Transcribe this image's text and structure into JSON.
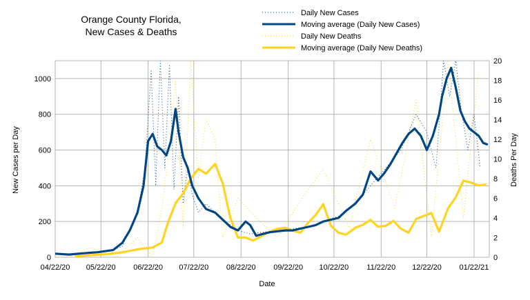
{
  "chart_data": {
    "type": "line",
    "title": "Orange County Florida,\nNew Cases & Deaths",
    "title_lines": [
      "Orange County Florida,",
      "New Cases & Deaths"
    ],
    "xlabel": "Date",
    "ylabel": "New Cases per Day",
    "y2label": "Deaths Per Day",
    "x_ticks": [
      "04/22/20",
      "05/22/20",
      "06/22/20",
      "07/22/20",
      "08/22/20",
      "09/22/20",
      "10/22/20",
      "11/22/20",
      "12/22/20",
      "01/22/21"
    ],
    "y_ticks": [
      0,
      200,
      400,
      600,
      800,
      1000
    ],
    "y2_ticks": [
      0,
      2,
      4,
      6,
      8,
      10,
      12,
      14,
      16,
      18,
      20
    ],
    "ylim": [
      0,
      1100
    ],
    "y2lim": [
      0,
      20
    ],
    "xlim": [
      "04/22/20",
      "02/01/21"
    ],
    "grid": true,
    "legend_position": "top-right",
    "colors": {
      "cases": "#004586",
      "deaths": "#ffd320"
    },
    "series": [
      {
        "name": "Daily New Cases",
        "axis": "left",
        "style": "dotted",
        "color": "#004586",
        "x": [
          "04/25/20",
          "05/05/20",
          "05/15/20",
          "05/25/20",
          "06/05/20",
          "06/15/20",
          "06/20/20",
          "06/24/20",
          "06/27/20",
          "06/30/20",
          "07/03/20",
          "07/06/20",
          "07/09/20",
          "07/12/20",
          "07/15/20",
          "07/18/20",
          "07/21/20",
          "07/25/20",
          "07/30/20",
          "08/05/20",
          "08/12/20",
          "08/20/20",
          "08/28/20",
          "09/05/20",
          "09/15/20",
          "09/25/20",
          "10/05/20",
          "10/15/20",
          "10/25/20",
          "11/05/20",
          "11/15/20",
          "11/25/20",
          "12/05/20",
          "12/15/20",
          "12/22/20",
          "12/28/20",
          "01/02/21",
          "01/06/21",
          "01/10/21",
          "01/14/21",
          "01/18/21",
          "01/22/21",
          "01/26/21"
        ],
        "values": [
          20,
          15,
          25,
          30,
          60,
          250,
          500,
          1050,
          400,
          1100,
          500,
          1080,
          380,
          900,
          300,
          500,
          350,
          250,
          300,
          250,
          200,
          150,
          130,
          140,
          150,
          160,
          170,
          200,
          230,
          300,
          400,
          500,
          600,
          800,
          700,
          500,
          1100,
          900,
          1100,
          800,
          600,
          800,
          500
        ]
      },
      {
        "name": "Moving average (Daily New Cases)",
        "axis": "left",
        "style": "solid",
        "color": "#004586",
        "x": [
          "04/22/20",
          "05/01/20",
          "05/10/20",
          "05/20/20",
          "05/30/20",
          "06/05/20",
          "06/10/20",
          "06/15/20",
          "06/19/20",
          "06/22/20",
          "06/25/20",
          "06/28/20",
          "07/01/20",
          "07/04/20",
          "07/07/20",
          "07/10/20",
          "07/12/20",
          "07/15/20",
          "07/18/20",
          "07/21/20",
          "07/25/20",
          "07/30/20",
          "08/05/20",
          "08/10/20",
          "08/15/20",
          "08/20/20",
          "08/25/20",
          "08/28/20",
          "09/01/20",
          "09/05/20",
          "09/10/20",
          "09/15/20",
          "09/20/20",
          "09/25/20",
          "09/30/20",
          "10/05/20",
          "10/10/20",
          "10/15/20",
          "10/20/20",
          "10/25/20",
          "10/30/20",
          "11/05/20",
          "11/10/20",
          "11/15/20",
          "11/20/20",
          "11/24/20",
          "11/28/20",
          "12/02/20",
          "12/06/20",
          "12/10/20",
          "12/14/20",
          "12/18/20",
          "12/22/20",
          "12/26/20",
          "12/30/20",
          "01/01/21",
          "01/04/21",
          "01/07/21",
          "01/10/21",
          "01/13/21",
          "01/16/21",
          "01/19/21",
          "01/22/21",
          "01/25/21",
          "01/28/21",
          "01/31/21"
        ],
        "values": [
          20,
          15,
          22,
          28,
          40,
          80,
          150,
          250,
          400,
          650,
          690,
          620,
          600,
          570,
          650,
          830,
          700,
          560,
          500,
          400,
          330,
          270,
          250,
          210,
          170,
          150,
          200,
          180,
          120,
          130,
          140,
          145,
          150,
          150,
          160,
          170,
          180,
          200,
          210,
          220,
          260,
          300,
          350,
          480,
          430,
          470,
          520,
          580,
          640,
          690,
          720,
          680,
          600,
          680,
          800,
          900,
          1000,
          1060,
          950,
          820,
          760,
          720,
          700,
          680,
          640,
          630
        ]
      },
      {
        "name": "Daily New Deaths",
        "axis": "right",
        "style": "dotted",
        "color": "#ffd320",
        "x": [
          "05/01/20",
          "05/15/20",
          "06/01/20",
          "06/15/20",
          "06/25/20",
          "07/01/20",
          "07/05/20",
          "07/10/20",
          "07/15/20",
          "07/20/20",
          "07/25/20",
          "07/30/20",
          "08/05/20",
          "08/10/20",
          "08/20/20",
          "09/01/20",
          "09/15/20",
          "10/01/20",
          "10/15/20",
          "11/01/20",
          "11/15/20",
          "12/01/20",
          "12/15/20",
          "12/25/20",
          "01/05/21",
          "01/15/21",
          "01/25/21"
        ],
        "values": [
          0,
          1,
          0,
          2,
          0,
          5,
          10,
          18,
          3,
          20,
          8,
          14,
          12,
          2,
          6,
          4,
          2,
          6,
          9,
          3,
          12,
          5,
          16,
          2,
          20,
          4,
          19
        ]
      },
      {
        "name": "Moving average (Daily New Deaths)",
        "axis": "right",
        "style": "solid",
        "color": "#ffd320",
        "x": [
          "05/05/20",
          "05/15/20",
          "05/25/20",
          "06/05/20",
          "06/15/20",
          "06/25/20",
          "07/01/20",
          "07/05/20",
          "07/10/20",
          "07/15/20",
          "07/20/20",
          "07/25/20",
          "07/30/20",
          "08/05/20",
          "08/10/20",
          "08/15/20",
          "08/20/20",
          "08/25/20",
          "08/30/20",
          "09/05/20",
          "09/10/20",
          "09/15/20",
          "09/20/20",
          "09/25/20",
          "09/30/20",
          "10/05/20",
          "10/10/20",
          "10/15/20",
          "10/20/20",
          "10/25/20",
          "10/30/20",
          "11/05/20",
          "11/10/20",
          "11/15/20",
          "11/20/20",
          "11/25/20",
          "11/30/20",
          "12/05/20",
          "12/10/20",
          "12/15/20",
          "12/20/20",
          "12/25/20",
          "12/30/20",
          "01/05/21",
          "01/10/21",
          "01/15/21",
          "01/20/21",
          "01/25/21",
          "01/30/21"
        ],
        "values": [
          0.1,
          0.2,
          0.3,
          0.5,
          0.8,
          1.0,
          1.5,
          3.5,
          5.5,
          6.5,
          8.0,
          9.0,
          8.5,
          9.5,
          7.5,
          4.0,
          2.0,
          2.0,
          1.7,
          2.2,
          2.6,
          2.9,
          3.0,
          2.7,
          2.5,
          3.5,
          4.3,
          5.4,
          3.2,
          2.5,
          2.3,
          3.0,
          3.3,
          3.8,
          3.1,
          3.2,
          3.7,
          2.9,
          2.5,
          3.9,
          4.2,
          4.5,
          2.6,
          5.0,
          6.1,
          7.8,
          7.6,
          7.3,
          7.4
        ]
      }
    ]
  }
}
